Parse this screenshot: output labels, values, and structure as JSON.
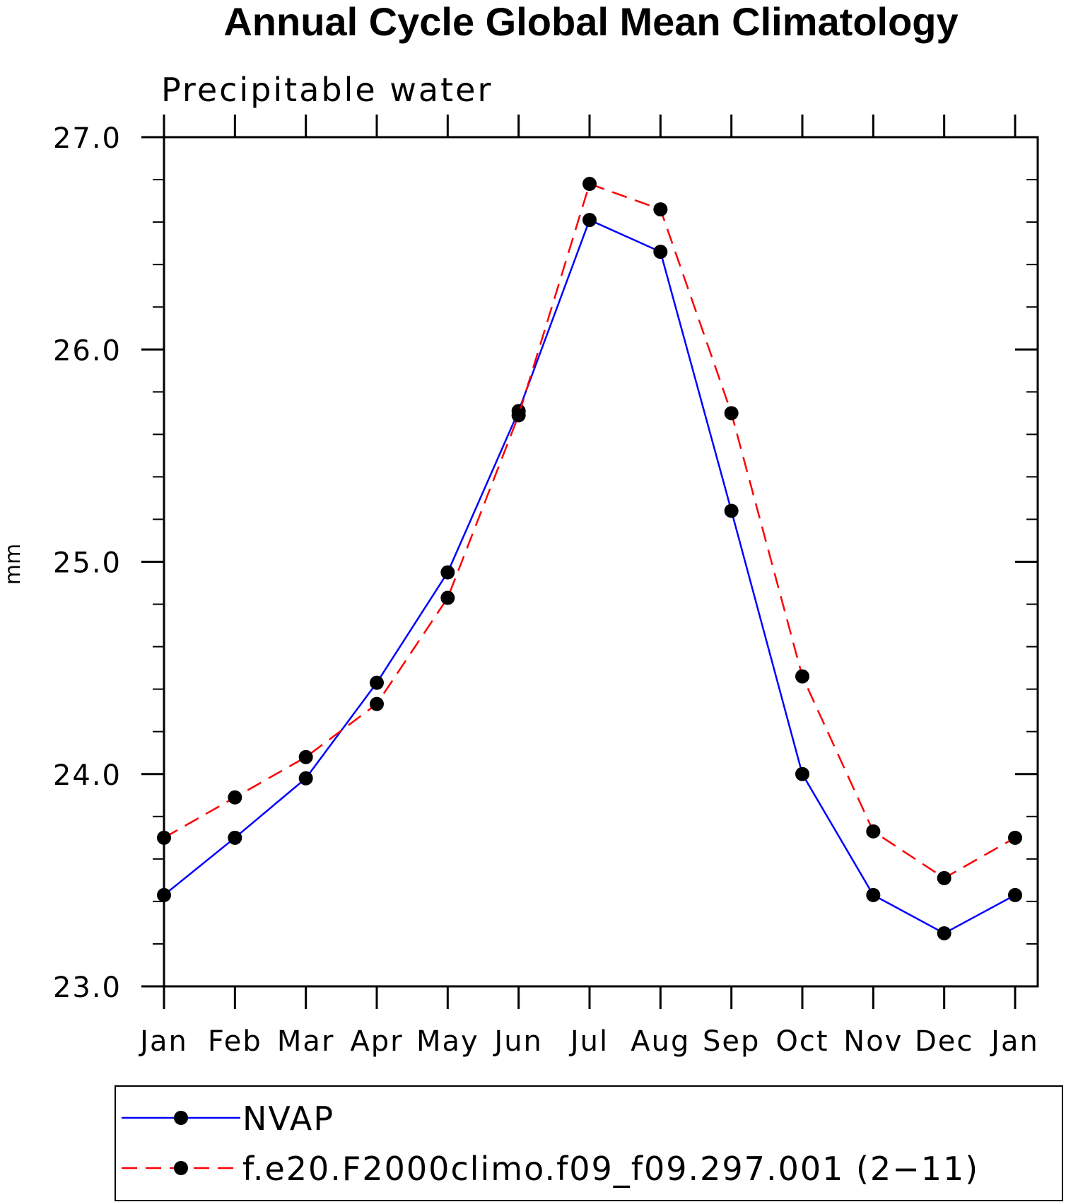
{
  "chart_data": {
    "type": "line",
    "title": "Annual Cycle Global Mean Climatology",
    "subtitle": "Precipitable water",
    "ylabel": "mm",
    "xlabel": "",
    "ylim": [
      23.0,
      27.0
    ],
    "yticks": [
      "23.0",
      "24.0",
      "25.0",
      "26.0",
      "27.0"
    ],
    "y_minor_step": 0.2,
    "categories": [
      "Jan",
      "Feb",
      "Mar",
      "Apr",
      "May",
      "Jun",
      "Jul",
      "Aug",
      "Sep",
      "Oct",
      "Nov",
      "Dec",
      "Jan"
    ],
    "grid": false,
    "legend_position": "bottom",
    "series": [
      {
        "name": "NVAP",
        "color": "#0000ff",
        "line_style": "solid",
        "marker": "filled-circle",
        "values": [
          23.43,
          23.7,
          23.98,
          24.43,
          24.95,
          25.71,
          26.61,
          26.46,
          25.24,
          24.0,
          23.43,
          23.25,
          23.43
        ]
      },
      {
        "name": "f.e20.F2000climo.f09_f09.297.001 (2−11)",
        "color": "#ff0000",
        "line_style": "dashed",
        "marker": "filled-circle",
        "values": [
          23.7,
          23.89,
          24.08,
          24.33,
          24.83,
          25.69,
          26.78,
          26.66,
          25.7,
          24.46,
          23.73,
          23.51,
          23.7
        ]
      }
    ]
  }
}
